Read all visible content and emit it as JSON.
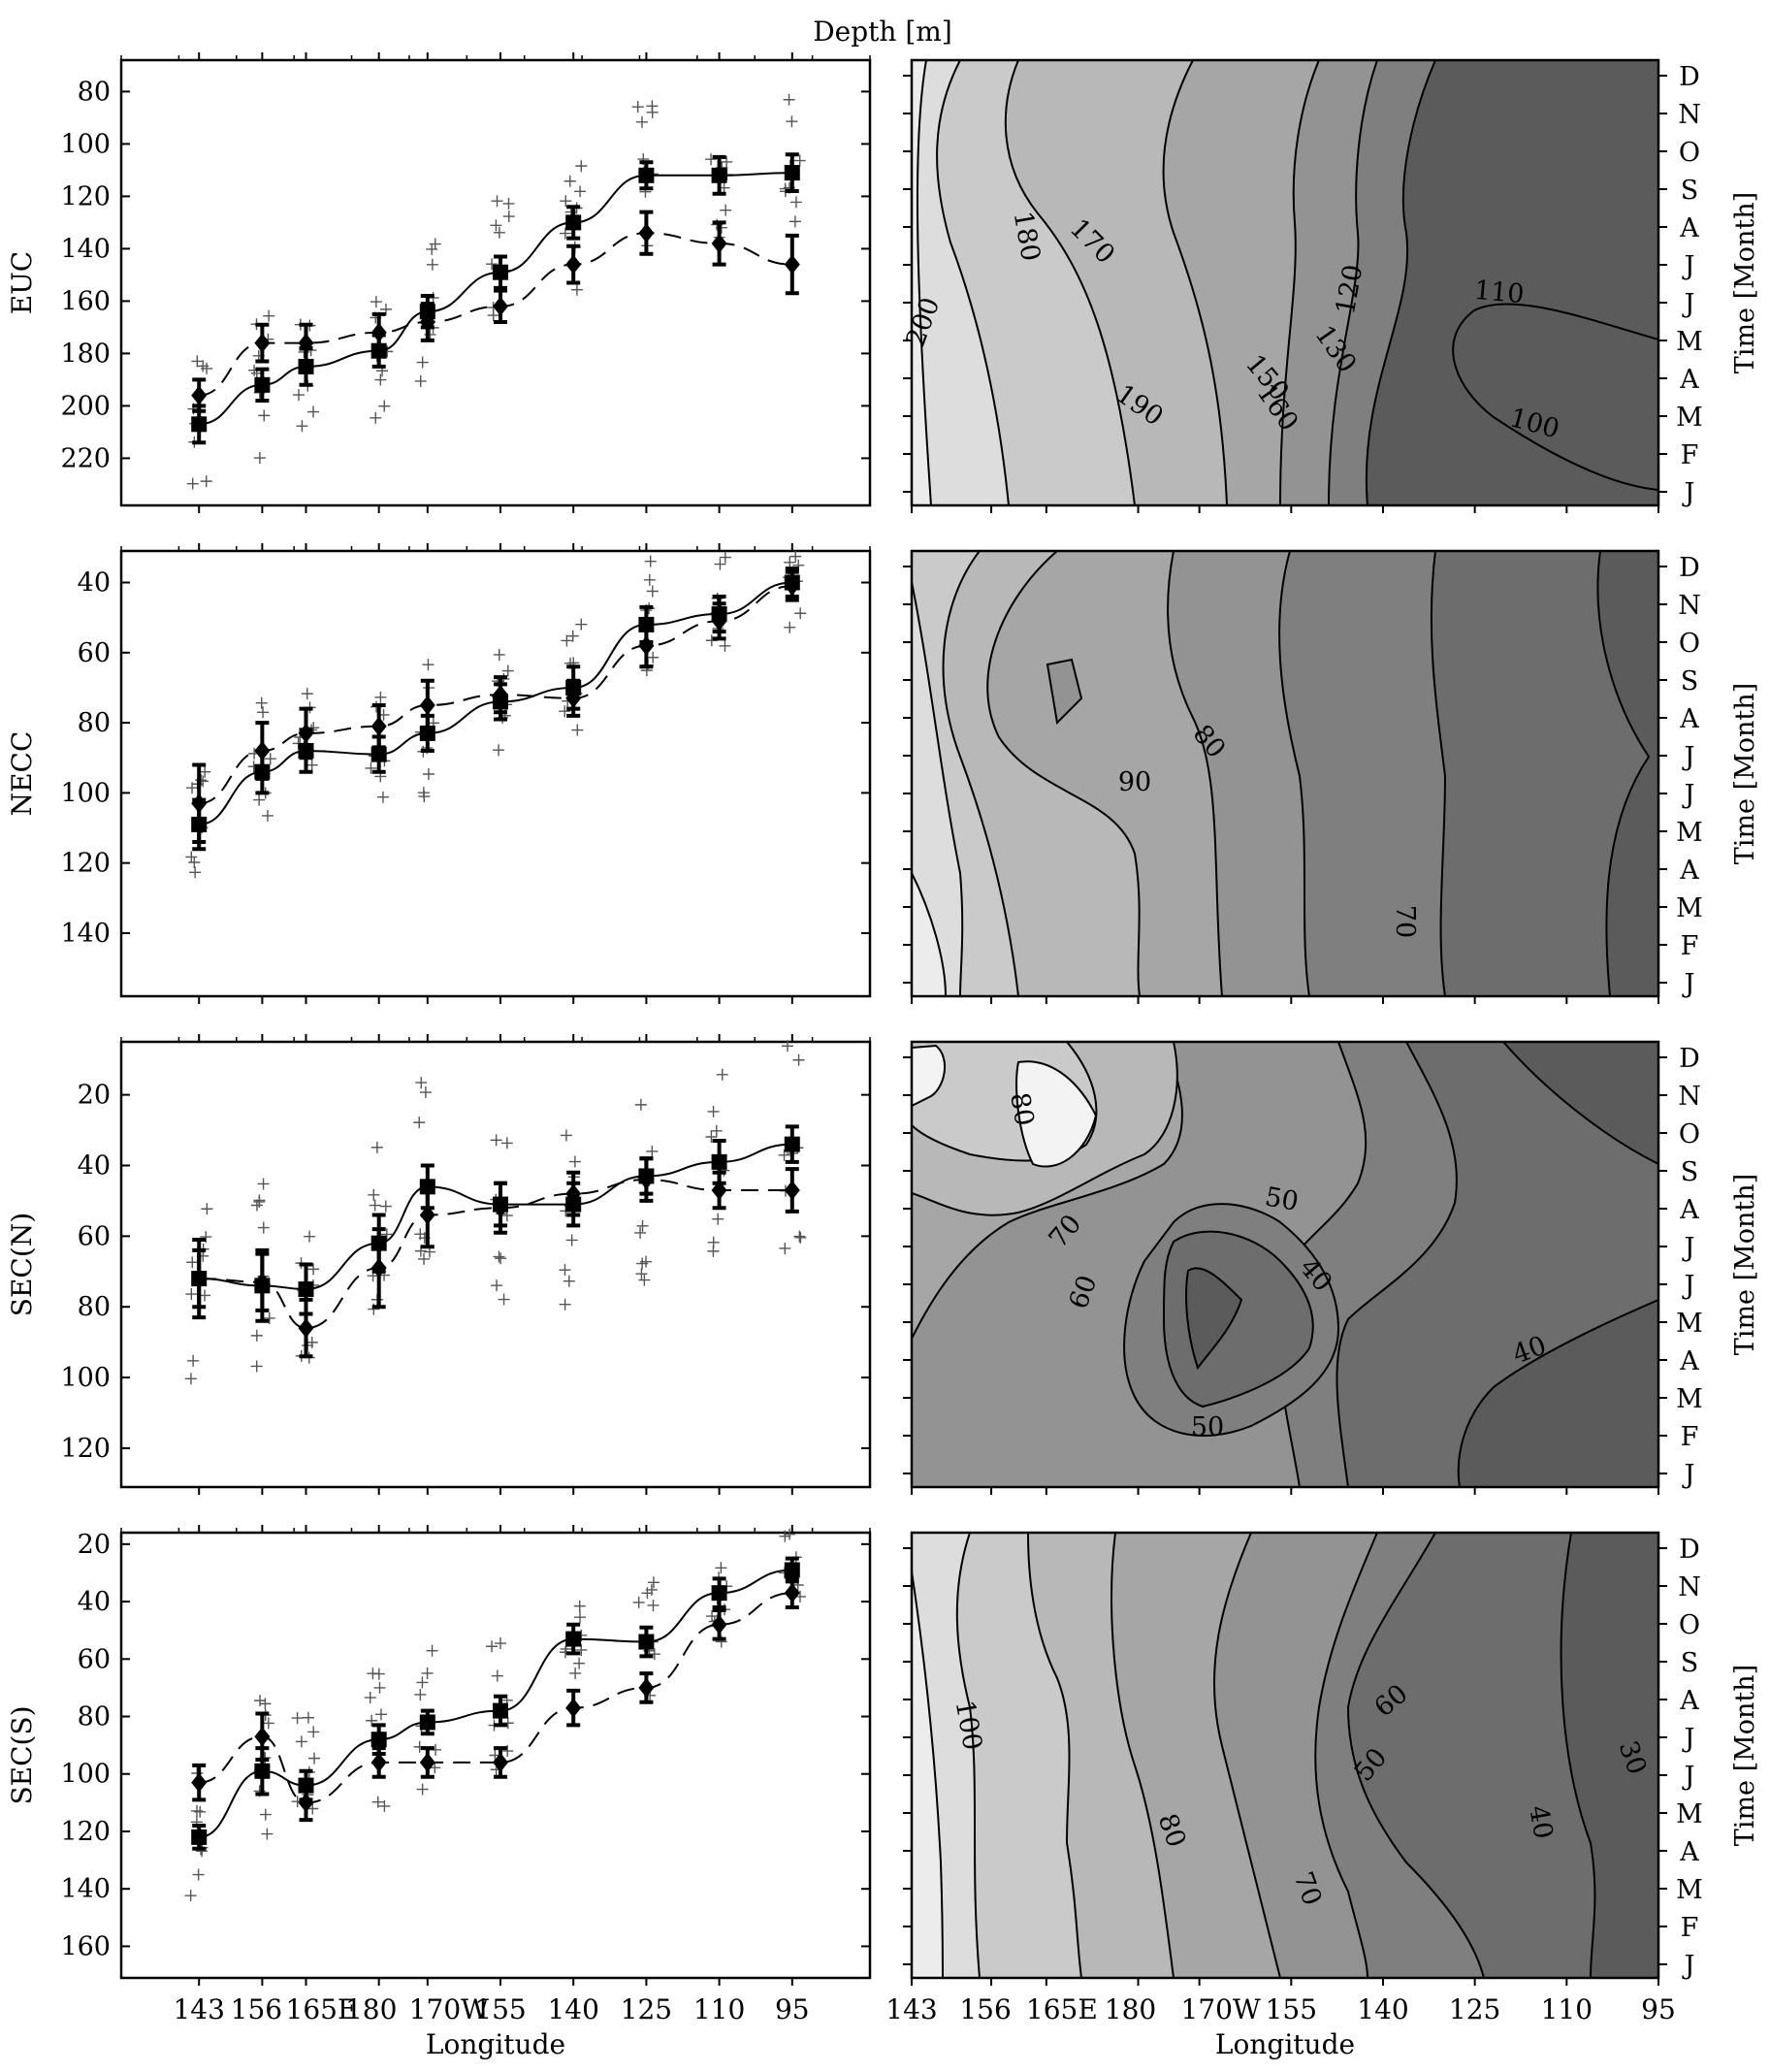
{
  "figure": {
    "top_label": "Depth [m]",
    "x_axis_label": "Longitude",
    "right_axis_label": "Time [Month]",
    "longitude_ticks": [
      "143",
      "156",
      "165E",
      "180",
      "170W",
      "155",
      "140",
      "125",
      "110",
      "95"
    ],
    "month_ticks": [
      "J",
      "F",
      "M",
      "A",
      "M",
      "J",
      "J",
      "A",
      "S",
      "O",
      "N",
      "D"
    ]
  },
  "chart_data": [
    {
      "type": "line",
      "panel": "left",
      "row_label": "EUC",
      "x": [
        143,
        156,
        165,
        180,
        190,
        205,
        220,
        235,
        250,
        265
      ],
      "y_ticks": [
        80,
        100,
        120,
        140,
        160,
        180,
        200,
        220
      ],
      "ylim": [
        68,
        238
      ],
      "y_inverted": true,
      "series": [
        {
          "marker": "square",
          "line": "solid",
          "values": [
            207,
            192,
            185,
            179,
            164,
            149,
            130,
            112,
            112,
            111
          ],
          "error": [
            7,
            6,
            7,
            6,
            6,
            6,
            6,
            5,
            7,
            7
          ]
        },
        {
          "marker": "diamond",
          "line": "dashed",
          "values": [
            196,
            176,
            176,
            172,
            168,
            162,
            146,
            134,
            138,
            146
          ],
          "error": [
            6,
            7,
            7,
            7,
            7,
            6,
            7,
            8,
            8,
            11
          ]
        }
      ],
      "scatter_spread": 28
    },
    {
      "type": "contour",
      "panel": "right",
      "row_label": "EUC",
      "contour_labels": [
        "200",
        "190",
        "180",
        "170",
        "160",
        "150",
        "130",
        "120",
        "110",
        "100"
      ]
    },
    {
      "type": "line",
      "panel": "left",
      "row_label": "NECC",
      "x": [
        143,
        156,
        165,
        180,
        190,
        205,
        220,
        235,
        250,
        265
      ],
      "y_ticks": [
        40,
        60,
        80,
        100,
        120,
        140
      ],
      "ylim": [
        31,
        158
      ],
      "y_inverted": true,
      "series": [
        {
          "marker": "square",
          "line": "solid",
          "values": [
            109,
            94,
            88,
            89,
            83,
            74,
            70,
            52,
            49,
            40
          ],
          "error": [
            7,
            6,
            6,
            5,
            5,
            5,
            6,
            5,
            5,
            4
          ]
        },
        {
          "marker": "diamond",
          "line": "dashed",
          "values": [
            103,
            88,
            83,
            81,
            75,
            72,
            73,
            58,
            51,
            41
          ],
          "error": [
            11,
            8,
            7,
            6,
            7,
            5,
            5,
            6,
            5,
            4
          ]
        }
      ],
      "scatter_spread": 20
    },
    {
      "type": "contour",
      "panel": "right",
      "row_label": "NECC",
      "contour_labels": [
        "90",
        "80",
        "70"
      ]
    },
    {
      "type": "line",
      "panel": "left",
      "row_label": "SEC(N)",
      "x": [
        143,
        156,
        165,
        180,
        190,
        205,
        220,
        235,
        250,
        265
      ],
      "y_ticks": [
        20,
        40,
        60,
        80,
        100,
        120
      ],
      "ylim": [
        5,
        131
      ],
      "y_inverted": true,
      "series": [
        {
          "marker": "square",
          "line": "solid",
          "values": [
            72,
            74,
            75,
            62,
            46,
            51,
            51,
            43,
            39,
            34
          ],
          "error": [
            11,
            10,
            7,
            8,
            6,
            6,
            6,
            5,
            6,
            5
          ]
        },
        {
          "marker": "diamond",
          "line": "dashed",
          "values": [
            72,
            73,
            86,
            69,
            54,
            52,
            48,
            44,
            47,
            47
          ],
          "error": [
            8,
            8,
            8,
            11,
            9,
            7,
            6,
            6,
            5,
            6
          ]
        }
      ],
      "scatter_spread": 30
    },
    {
      "type": "contour",
      "panel": "right",
      "row_label": "SEC(N)",
      "contour_labels": [
        "80",
        "70",
        "60",
        "50",
        "40",
        "50",
        "40"
      ]
    },
    {
      "type": "line",
      "panel": "left",
      "row_label": "SEC(S)",
      "x": [
        143,
        156,
        165,
        180,
        190,
        205,
        220,
        235,
        250,
        265
      ],
      "y_ticks": [
        20,
        40,
        60,
        80,
        100,
        120,
        140,
        160
      ],
      "ylim": [
        16,
        171
      ],
      "y_inverted": true,
      "series": [
        {
          "marker": "square",
          "line": "solid",
          "values": [
            122,
            99,
            104,
            88,
            82,
            78,
            53,
            54,
            37,
            29
          ],
          "error": [
            4,
            8,
            5,
            5,
            4,
            5,
            5,
            5,
            5,
            4
          ]
        },
        {
          "marker": "diamond",
          "line": "dashed",
          "values": [
            103,
            87,
            110,
            96,
            96,
            96,
            77,
            70,
            48,
            37
          ],
          "error": [
            6,
            8,
            6,
            5,
            5,
            5,
            6,
            5,
            5,
            5
          ]
        }
      ],
      "scatter_spread": 25
    },
    {
      "type": "contour",
      "panel": "right",
      "row_label": "SEC(S)",
      "contour_labels": [
        "100",
        "80",
        "70",
        "60",
        "50",
        "40",
        "30"
      ]
    }
  ]
}
